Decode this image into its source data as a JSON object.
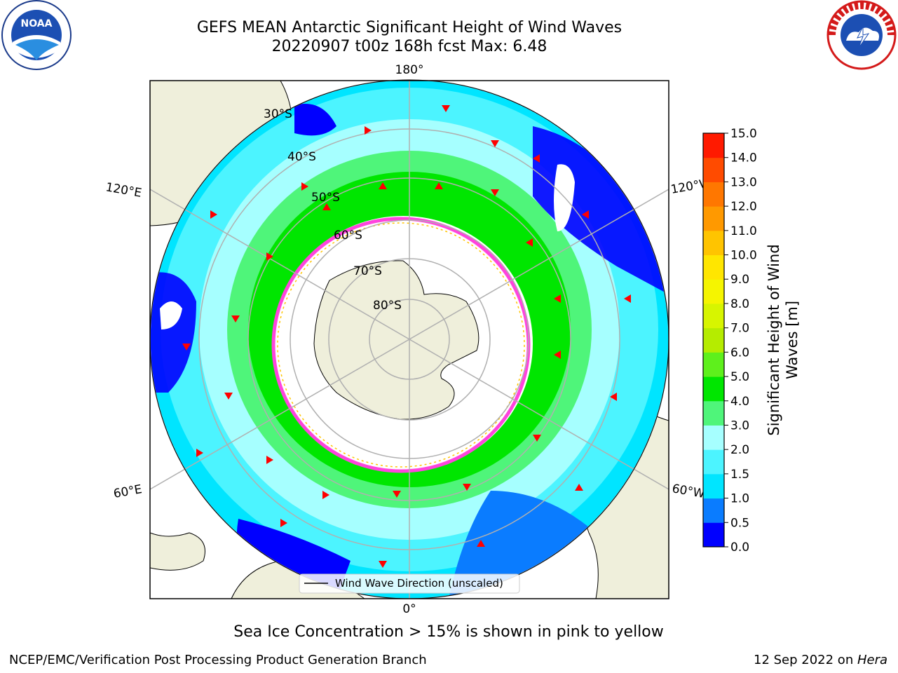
{
  "title_line1": "GEFS MEAN Antarctic Significant Height of Wind Waves",
  "title_line2": "20220907 t00z 168h fcst   Max: 6.48",
  "subtitle": "Sea Ice Concentration > 15% is shown in pink to yellow",
  "footer_left": "NCEP/EMC/Verification Post Processing Product Generation Branch",
  "footer_right_date": "12 Sep 2022 on ",
  "footer_right_host": "Hera",
  "logos": {
    "left": "NOAA",
    "right": "NATIONAL WEATHER SERVICE"
  },
  "map": {
    "projection": "south-polar-stereographic",
    "lat_labels": [
      "30°S",
      "40°S",
      "50°S",
      "60°S",
      "70°S",
      "80°S"
    ],
    "lon_labels": {
      "top": "180°",
      "bottom": "0°",
      "upper_left": "120°E",
      "upper_right": "120°W",
      "lower_left": "60°E",
      "lower_right": "60°W"
    },
    "legend": "Wind Wave Direction (unscaled)"
  },
  "colorbar": {
    "label_line1": "Significant Height of Wind",
    "label_line2": "Waves [m]",
    "ticks": [
      "0.0",
      "0.5",
      "1.0",
      "1.5",
      "2.0",
      "3.0",
      "4.0",
      "5.0",
      "6.0",
      "7.0",
      "8.0",
      "9.0",
      "10.0",
      "11.0",
      "12.0",
      "13.0",
      "14.0",
      "15.0"
    ],
    "colors": [
      "#0000ff",
      "#0a7cff",
      "#00e5ff",
      "#4cf4ff",
      "#a6ffff",
      "#4ff57a",
      "#00e600",
      "#5ef01c",
      "#b5ec00",
      "#d7f500",
      "#f5f500",
      "#ffe600",
      "#ffc400",
      "#ff9900",
      "#ff7700",
      "#ff4b00",
      "#ff1a00"
    ]
  }
}
